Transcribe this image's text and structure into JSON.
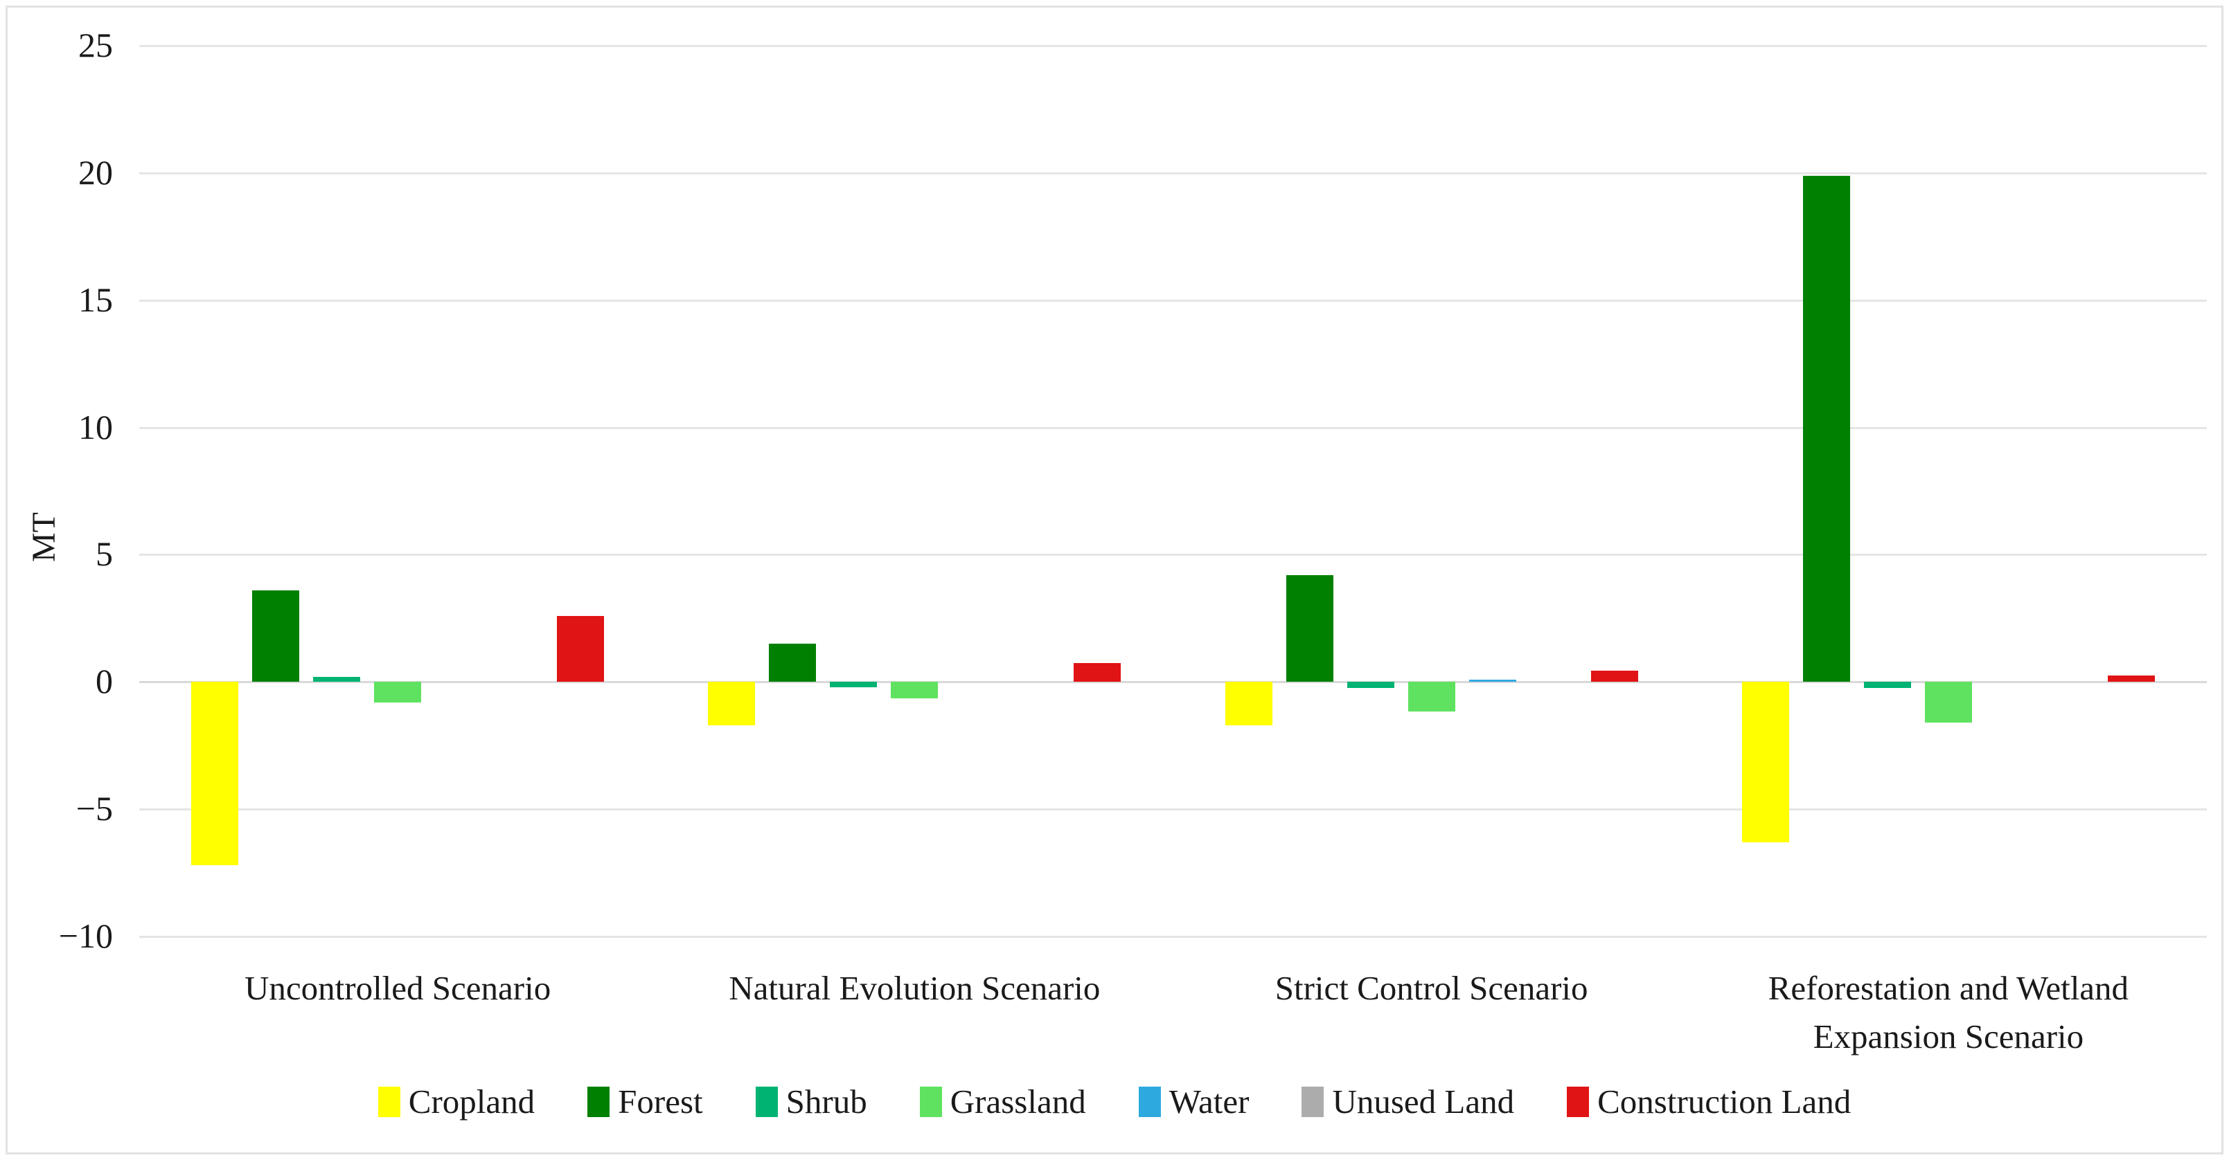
{
  "figure": {
    "border_color": "#e2e2e2",
    "background": "#ffffff",
    "text_color": "#1a1a1a",
    "grid_color": "#e5e5e5",
    "zero_line_color": "#d9d9d9"
  },
  "chart_data": {
    "type": "bar",
    "title": "",
    "xlabel": "",
    "ylabel": "MT",
    "ylim": [
      -10,
      25
    ],
    "grid": "horizontal",
    "legend_position": "bottom",
    "yticks": [
      25,
      20,
      15,
      10,
      5,
      0,
      -5,
      -10
    ],
    "yticklabels": [
      "25",
      "20",
      "15",
      "10",
      "5",
      "0",
      "−5",
      "−10"
    ],
    "categories": [
      "Uncontrolled Scenario",
      "Natural Evolution Scenario",
      "Strict Control Scenario",
      "Reforestation and Wetland Expansion Scenario"
    ],
    "series": [
      {
        "name": "Cropland",
        "color": "#ffff00",
        "values": [
          -7.2,
          -1.7,
          -1.7,
          -6.3
        ]
      },
      {
        "name": "Forest",
        "color": "#008000",
        "values": [
          3.6,
          1.5,
          4.2,
          19.9
        ]
      },
      {
        "name": "Shrub",
        "color": "#00b373",
        "values": [
          0.2,
          -0.2,
          -0.25,
          -0.25
        ]
      },
      {
        "name": "Grassland",
        "color": "#5fe25f",
        "values": [
          -0.8,
          -0.65,
          -1.15,
          -1.6
        ]
      },
      {
        "name": "Water",
        "color": "#2ea9e0",
        "values": [
          0,
          0,
          0.1,
          0
        ]
      },
      {
        "name": "Unused Land",
        "color": "#acacac",
        "values": [
          0,
          0,
          0,
          0
        ]
      },
      {
        "name": "Construction Land",
        "color": "#e01315",
        "values": [
          2.6,
          0.75,
          0.45,
          0.25
        ]
      }
    ]
  }
}
